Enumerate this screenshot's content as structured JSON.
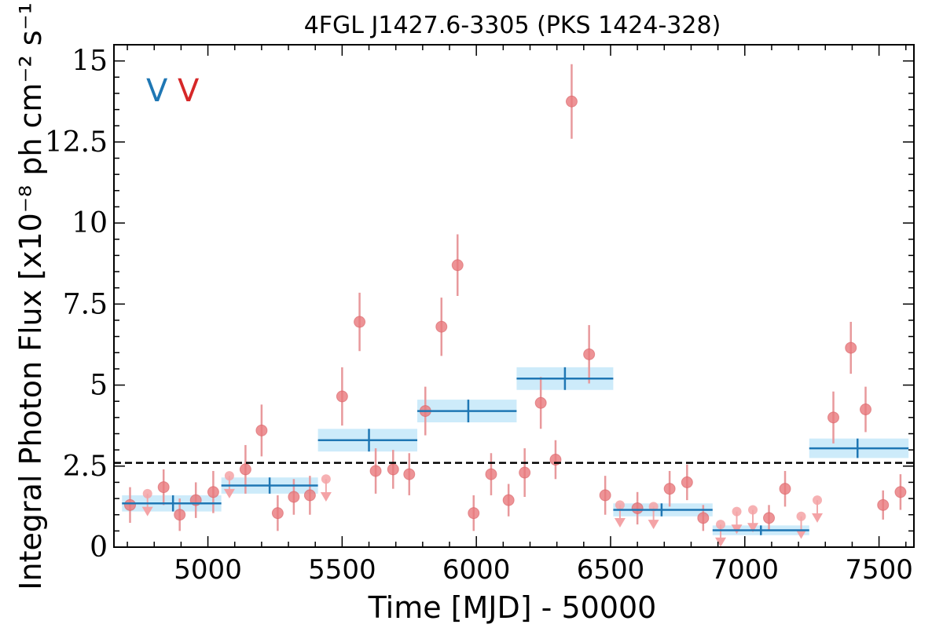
{
  "chart_data": {
    "type": "scatter",
    "title": "4FGL J1427.6-3305 (PKS 1424-328)",
    "xlabel": "Time [MJD] - 50000",
    "ylabel": "Integral Photon Flux [x10⁻⁸ ph cm⁻² s⁻¹]",
    "xlim": [
      4650,
      7630
    ],
    "ylim": [
      0,
      15.5
    ],
    "xticks": [
      5000,
      5500,
      6000,
      6500,
      7000,
      7500
    ],
    "xtick_labels": [
      "5000",
      "5500",
      "6000",
      "6500",
      "7000",
      "7500"
    ],
    "yticks": [
      0,
      2.5,
      5,
      7.5,
      10,
      12.5,
      15
    ],
    "ytick_labels": [
      "0",
      "2.5",
      "5",
      "7.5",
      "10",
      "12.5",
      "15"
    ],
    "grid": false,
    "reference_line": {
      "y": 2.6,
      "style": "dashed",
      "color": "#000000"
    },
    "markers": [
      {
        "text": "V",
        "color": "#1f77b4"
      },
      {
        "text": "V",
        "color": "#d62728"
      }
    ],
    "colors": {
      "points": "#e8787c",
      "errorbars": "#e8999c",
      "bins": "#1f77b4",
      "bin_band": "#cdebfa"
    },
    "series": [
      {
        "type": "points_with_errorbars",
        "points": [
          {
            "x": 4710,
            "y": 1.3,
            "yerr": 0.55
          },
          {
            "x": 4835,
            "y": 1.85,
            "yerr": 0.55
          },
          {
            "x": 4895,
            "y": 1.0,
            "yerr": 0.5
          },
          {
            "x": 4955,
            "y": 1.45,
            "yerr": 0.55
          },
          {
            "x": 5020,
            "y": 1.7,
            "yerr": 0.65
          },
          {
            "x": 5140,
            "y": 2.4,
            "yerr": 0.75
          },
          {
            "x": 5200,
            "y": 3.6,
            "yerr": 0.8
          },
          {
            "x": 5260,
            "y": 1.05,
            "yerr": 0.55
          },
          {
            "x": 5320,
            "y": 1.55,
            "yerr": 0.55
          },
          {
            "x": 5380,
            "y": 1.6,
            "yerr": 0.6
          },
          {
            "x": 5500,
            "y": 4.65,
            "yerr": 0.9
          },
          {
            "x": 5565,
            "y": 6.95,
            "yerr": 0.9
          },
          {
            "x": 5625,
            "y": 2.35,
            "yerr": 0.7
          },
          {
            "x": 5690,
            "y": 2.4,
            "yerr": 0.6
          },
          {
            "x": 5750,
            "y": 2.25,
            "yerr": 0.65
          },
          {
            "x": 5810,
            "y": 4.2,
            "yerr": 0.75
          },
          {
            "x": 5870,
            "y": 6.8,
            "yerr": 0.9
          },
          {
            "x": 5930,
            "y": 8.7,
            "yerr": 0.95
          },
          {
            "x": 5990,
            "y": 1.05,
            "yerr": 0.55
          },
          {
            "x": 6055,
            "y": 2.25,
            "yerr": 0.65
          },
          {
            "x": 6120,
            "y": 1.45,
            "yerr": 0.5
          },
          {
            "x": 6180,
            "y": 2.3,
            "yerr": 0.75
          },
          {
            "x": 6240,
            "y": 4.45,
            "yerr": 0.8
          },
          {
            "x": 6295,
            "y": 2.7,
            "yerr": 0.6
          },
          {
            "x": 6355,
            "y": 13.75,
            "yerr": 1.15
          },
          {
            "x": 6420,
            "y": 5.95,
            "yerr": 0.9
          },
          {
            "x": 6480,
            "y": 1.6,
            "yerr": 0.6
          },
          {
            "x": 6600,
            "y": 1.2,
            "yerr": 0.5
          },
          {
            "x": 6720,
            "y": 1.8,
            "yerr": 0.55
          },
          {
            "x": 6785,
            "y": 2.0,
            "yerr": 0.55
          },
          {
            "x": 6845,
            "y": 0.9,
            "yerr": 0.4
          },
          {
            "x": 7090,
            "y": 0.9,
            "yerr": 0.4
          },
          {
            "x": 7150,
            "y": 1.8,
            "yerr": 0.55
          },
          {
            "x": 7330,
            "y": 4.0,
            "yerr": 0.8
          },
          {
            "x": 7395,
            "y": 6.15,
            "yerr": 0.8
          },
          {
            "x": 7450,
            "y": 4.25,
            "yerr": 0.7
          },
          {
            "x": 7515,
            "y": 1.3,
            "yerr": 0.45
          },
          {
            "x": 7580,
            "y": 1.7,
            "yerr": 0.55
          }
        ]
      },
      {
        "type": "upper_limits",
        "points": [
          {
            "x": 4775,
            "y": 1.65
          },
          {
            "x": 5080,
            "y": 2.2
          },
          {
            "x": 5440,
            "y": 2.1
          },
          {
            "x": 6535,
            "y": 1.3
          },
          {
            "x": 6660,
            "y": 1.25
          },
          {
            "x": 6910,
            "y": 0.7
          },
          {
            "x": 6970,
            "y": 1.1
          },
          {
            "x": 7030,
            "y": 1.15
          },
          {
            "x": 7210,
            "y": 0.95
          },
          {
            "x": 7270,
            "y": 1.45
          }
        ]
      },
      {
        "type": "bayesian_blocks",
        "blocks": [
          {
            "x0": 4680,
            "x1": 5050,
            "y": 1.35,
            "yerr": 0.25,
            "xc": 4870
          },
          {
            "x0": 5050,
            "x1": 5410,
            "y": 1.9,
            "yerr": 0.25,
            "xc": 5230
          },
          {
            "x0": 5410,
            "x1": 5780,
            "y": 3.3,
            "yerr": 0.35,
            "xc": 5600
          },
          {
            "x0": 5780,
            "x1": 6150,
            "y": 4.2,
            "yerr": 0.35,
            "xc": 5970
          },
          {
            "x0": 6150,
            "x1": 6510,
            "y": 5.2,
            "yerr": 0.35,
            "xc": 6330
          },
          {
            "x0": 6510,
            "x1": 6880,
            "y": 1.15,
            "yerr": 0.2,
            "xc": 6690
          },
          {
            "x0": 6880,
            "x1": 7240,
            "y": 0.52,
            "yerr": 0.15,
            "xc": 7060
          },
          {
            "x0": 7240,
            "x1": 7610,
            "y": 3.05,
            "yerr": 0.3,
            "xc": 7420
          }
        ]
      }
    ]
  }
}
